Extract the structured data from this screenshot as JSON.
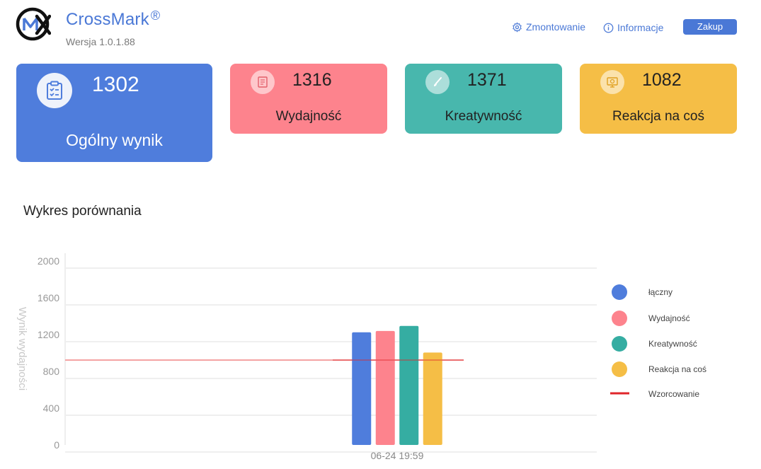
{
  "header": {
    "app_name": "CrossMark",
    "registered": "®",
    "version": "Wersja 1.0.1.88",
    "settings_label": "Zmontowanie",
    "info_label": "Informacje",
    "buy_label": "Zakup",
    "accent_color": "#4a78d6"
  },
  "cards": {
    "overall": {
      "score": "1302",
      "label": "Ogólny wynik",
      "color": "#4f7ddc",
      "icon": "clipboard-check-icon"
    },
    "performance": {
      "score": "1316",
      "label": "Wydajność",
      "color": "#fd838d",
      "icon": "document-icon"
    },
    "creativity": {
      "score": "1371",
      "label": "Kreatywność",
      "color": "#48b7ad",
      "icon": "brush-icon"
    },
    "reaction": {
      "score": "1082",
      "label": "Reakcja na coś",
      "color": "#f5be46",
      "icon": "monitor-icon"
    }
  },
  "section_title": "Wykres porównania",
  "chart_data": {
    "type": "bar",
    "ylabel": "Wynik wydajności",
    "xlabel": "",
    "ylim": [
      0,
      2000
    ],
    "yticks": [
      0,
      400,
      800,
      1200,
      1600,
      2000
    ],
    "categories": [
      "06-24 19:59"
    ],
    "series": [
      {
        "name": "łączny",
        "values": [
          1302
        ],
        "color": "#4f7ddc"
      },
      {
        "name": "Wydajność",
        "values": [
          1316
        ],
        "color": "#fd838d"
      },
      {
        "name": "Kreatywność",
        "values": [
          1371
        ],
        "color": "#35ada2"
      },
      {
        "name": "Reakcja na coś",
        "values": [
          1082
        ],
        "color": "#f5be46"
      }
    ],
    "reference_line": {
      "name": "Wzorcowanie",
      "value": 1000,
      "color": "#e0262b"
    },
    "grid": true,
    "legend_position": "right"
  }
}
